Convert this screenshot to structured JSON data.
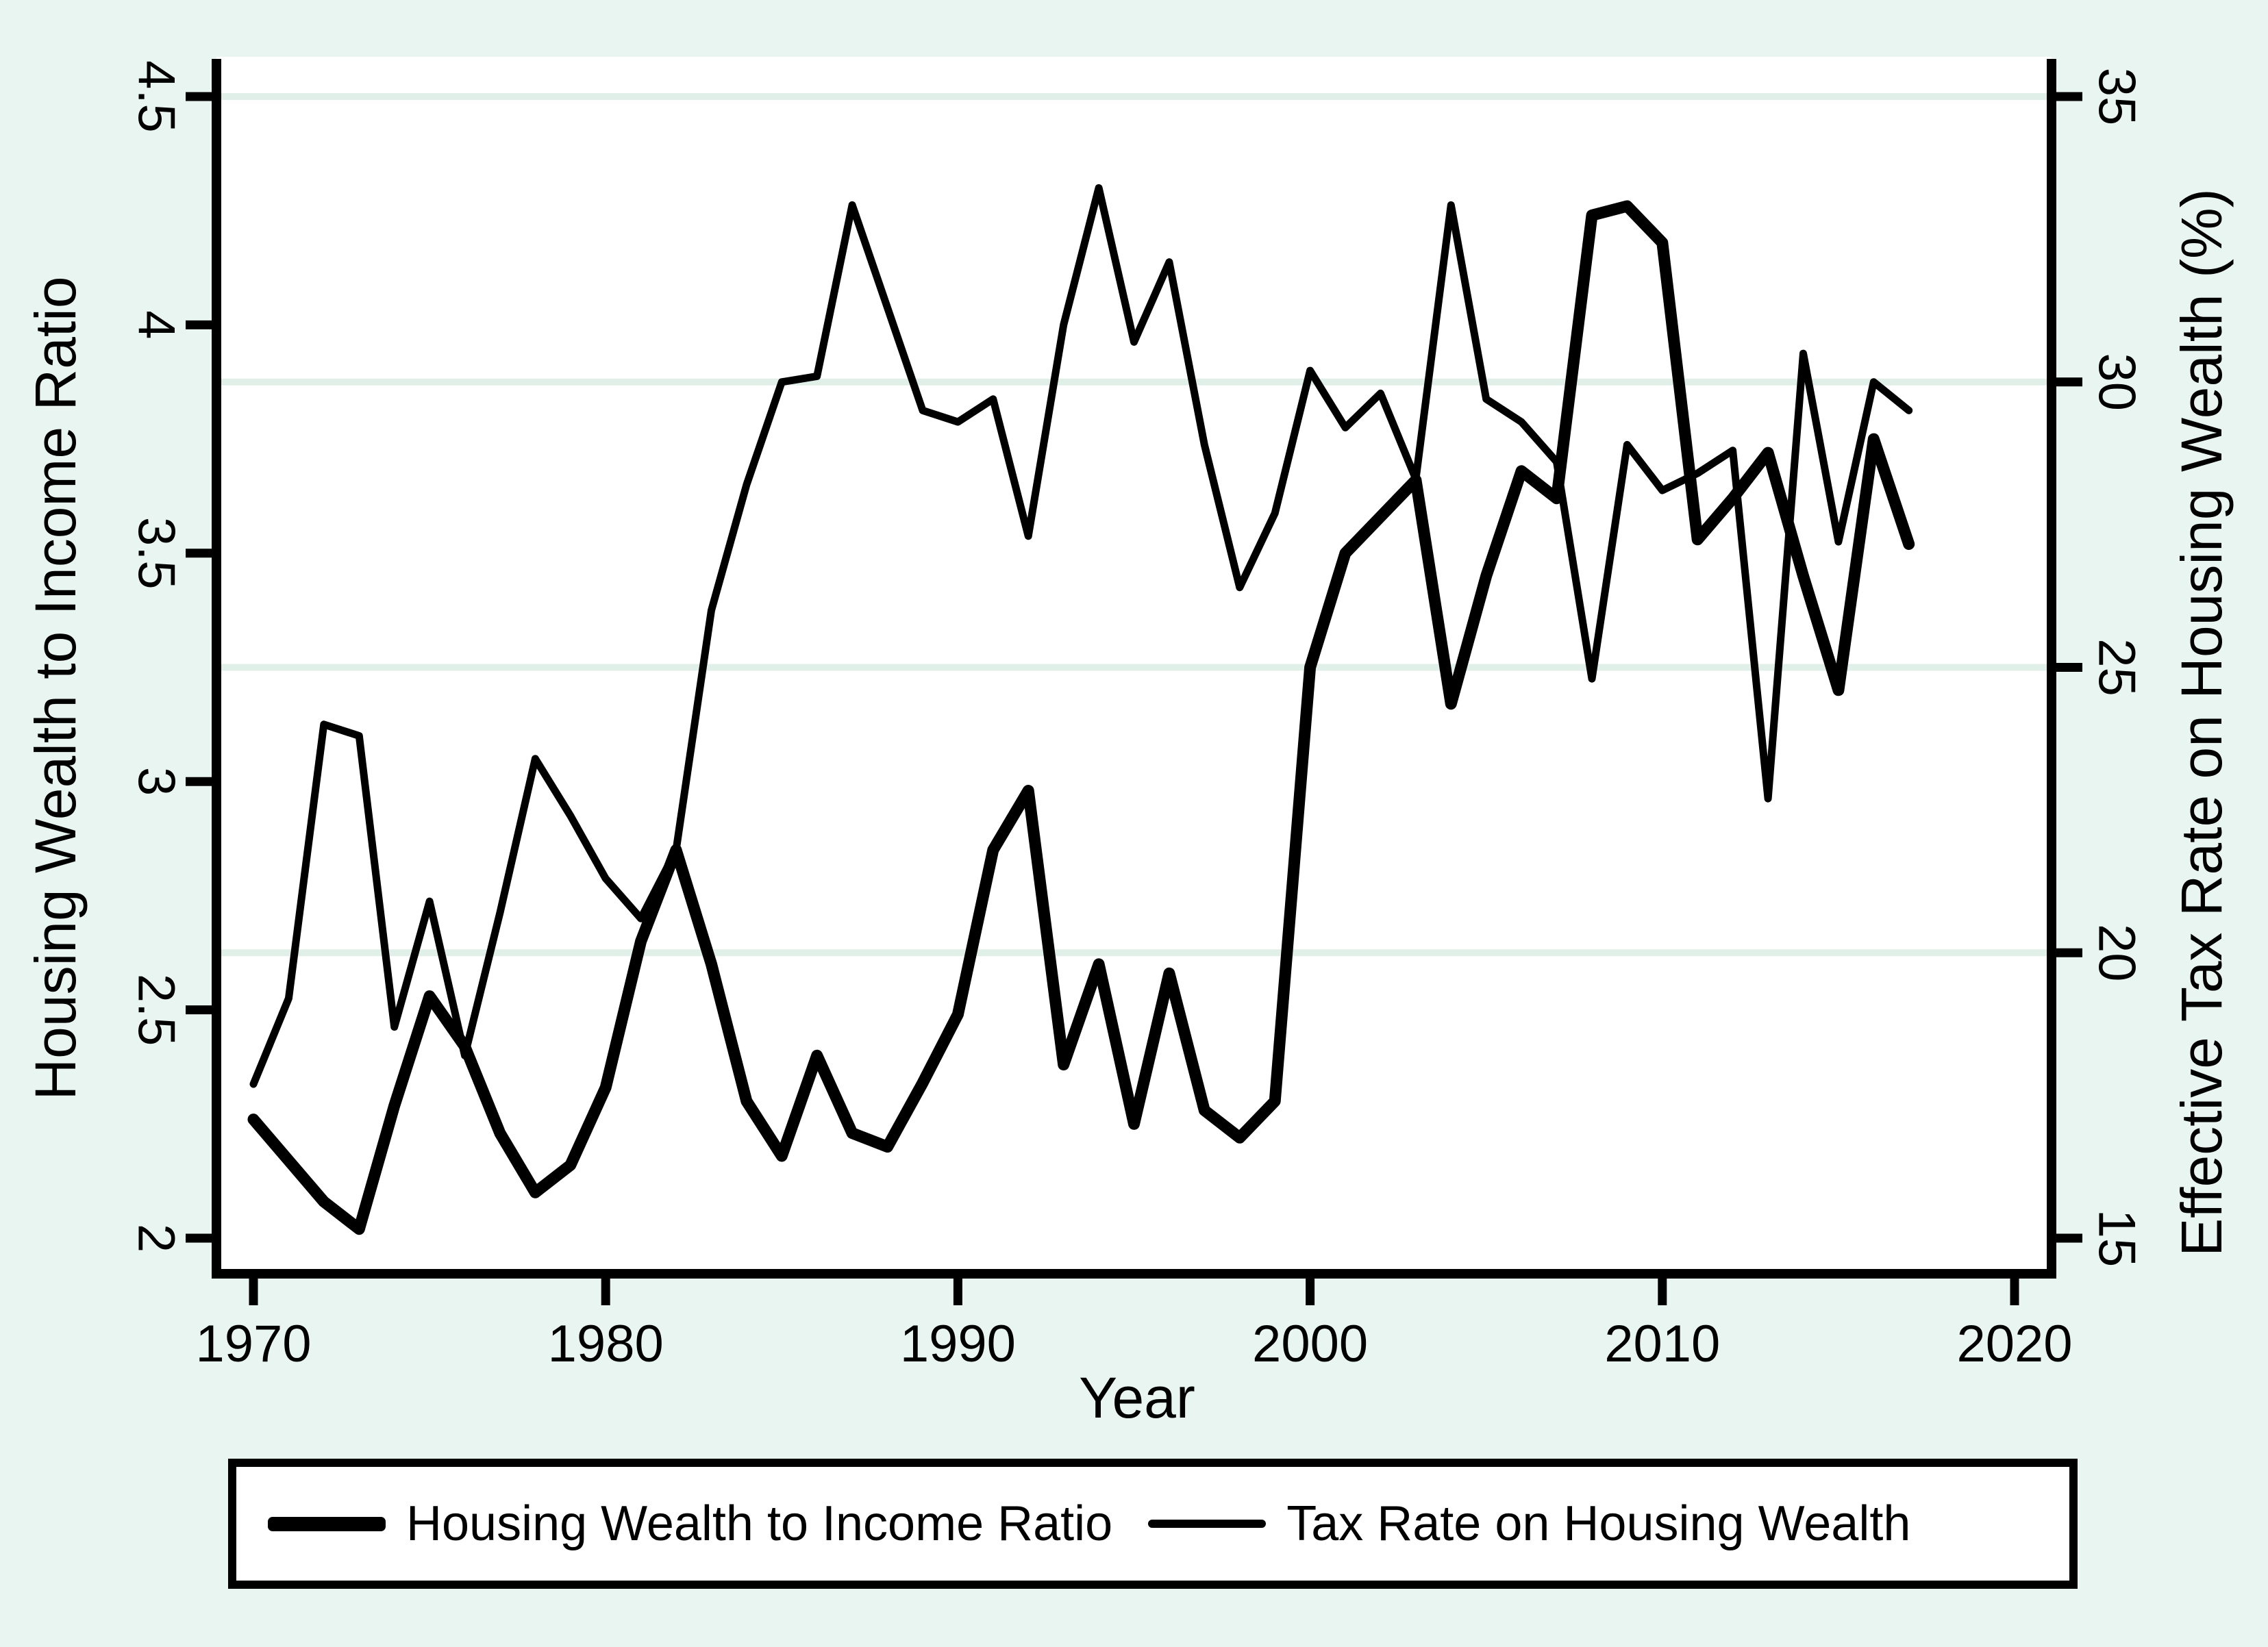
{
  "figure": {
    "background_color": "#e9f5f0",
    "plot_background_color": "#ffffff",
    "line_color": "#000000",
    "grid_color": "#e1efe9"
  },
  "chart_data": {
    "type": "line",
    "title": "",
    "xlabel": "Year",
    "ylabel_left": "Housing Wealth to Income Ratio",
    "ylabel_right": "Effective Tax Rate on Housing Wealth (%)",
    "xlim": [
      1970,
      2020
    ],
    "ylim_left": [
      2,
      4.5
    ],
    "ylim_right": [
      15,
      35
    ],
    "x_ticks": [
      1970,
      1980,
      1990,
      2000,
      2010,
      2020
    ],
    "y_ticks_left": [
      "2",
      "2.5",
      "3",
      "3.5",
      "4",
      "4.5"
    ],
    "y_ticks_left_values": [
      2,
      2.5,
      3,
      3.5,
      4,
      4.5
    ],
    "y_ticks_right": [
      "15",
      "20",
      "25",
      "30",
      "35"
    ],
    "y_ticks_right_values": [
      15,
      20,
      25,
      30,
      35
    ],
    "gridlines_right_axis_values": [
      20,
      25,
      30,
      35
    ],
    "grid": "horizontal",
    "legend_position": "bottom",
    "x": [
      1970,
      1971,
      1972,
      1973,
      1974,
      1975,
      1976,
      1977,
      1978,
      1979,
      1980,
      1981,
      1982,
      1983,
      1984,
      1985,
      1986,
      1987,
      1988,
      1989,
      1990,
      1991,
      1992,
      1993,
      1994,
      1995,
      1996,
      1997,
      1998,
      1999,
      2000,
      2001,
      2002,
      2003,
      2004,
      2005,
      2006,
      2007,
      2008,
      2009,
      2010,
      2011,
      2012,
      2013,
      2014,
      2015,
      2016,
      2017
    ],
    "series": [
      {
        "name": "Housing Wealth to Income Ratio",
        "axis": "left",
        "stroke_width": 17,
        "values": [
          2.26,
          2.17,
          2.08,
          2.02,
          2.29,
          2.53,
          2.42,
          2.23,
          2.1,
          2.16,
          2.33,
          2.65,
          2.85,
          2.6,
          2.3,
          2.18,
          2.4,
          2.23,
          2.2,
          2.34,
          2.49,
          2.85,
          2.98,
          2.38,
          2.6,
          2.25,
          2.58,
          2.28,
          2.22,
          2.3,
          3.25,
          3.5,
          3.58,
          3.66,
          3.17,
          3.45,
          3.68,
          3.62,
          4.24,
          4.26,
          4.18,
          3.53,
          3.62,
          3.72,
          3.45,
          3.2,
          3.75,
          3.52
        ]
      },
      {
        "name": "Tax Rate on Housing Wealth",
        "axis": "right",
        "stroke_width": 11,
        "values": [
          17.7,
          19.2,
          24.0,
          23.8,
          18.7,
          20.9,
          18.2,
          20.7,
          23.4,
          22.4,
          21.3,
          20.6,
          21.8,
          26.0,
          28.2,
          30.0,
          30.1,
          33.1,
          31.3,
          29.5,
          29.3,
          29.7,
          27.3,
          31.0,
          33.4,
          30.7,
          32.1,
          28.9,
          26.4,
          27.7,
          30.2,
          29.2,
          29.8,
          28.3,
          33.1,
          29.7,
          29.3,
          28.6,
          24.8,
          28.9,
          28.1,
          28.4,
          28.8,
          22.7,
          30.5,
          27.2,
          30.0,
          29.5
        ]
      }
    ]
  },
  "legend": {
    "items": [
      {
        "label": "Housing Wealth to Income Ratio",
        "swatch": "thick-line"
      },
      {
        "label": "Tax Rate on Housing Wealth",
        "swatch": "thin-line"
      }
    ]
  }
}
